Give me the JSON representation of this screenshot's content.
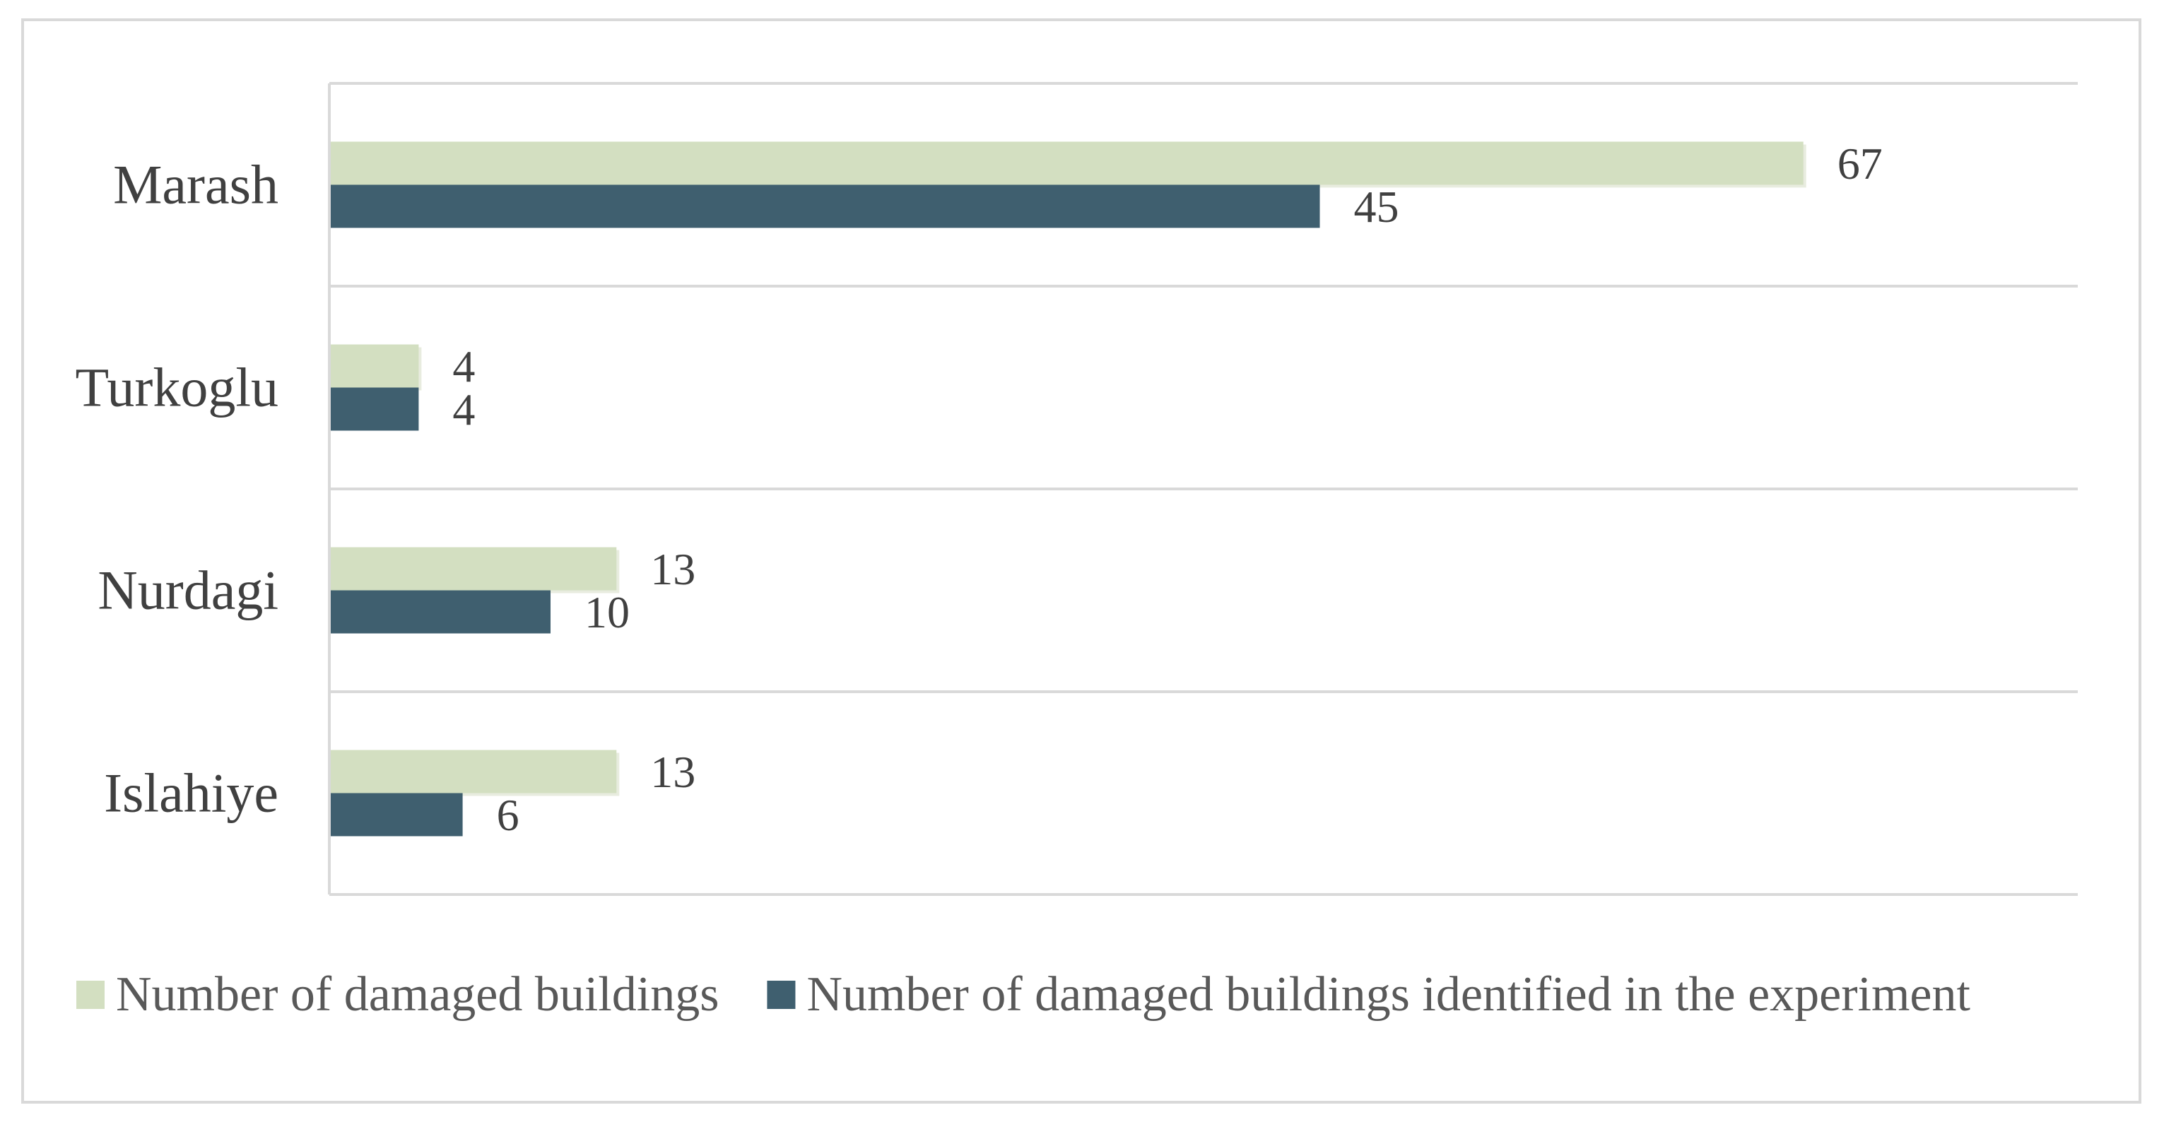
{
  "chart_data": {
    "type": "bar",
    "orientation": "horizontal",
    "categories": [
      "Marash",
      "Turkoglu",
      "Nurdagi",
      "Islahiye"
    ],
    "series": [
      {
        "name": "Number of damaged buildings",
        "values": [
          67,
          4,
          13,
          13
        ],
        "color": "#d3dfc1"
      },
      {
        "name": "Number of damaged buildings identified in the  experiment",
        "values": [
          45,
          4,
          10,
          6
        ],
        "color": "#3f5f6f"
      }
    ],
    "title": "",
    "xlabel": "",
    "ylabel": "",
    "xlim": [
      0,
      80
    ],
    "grid": true,
    "legend_position": "bottom",
    "data_labels": true
  }
}
